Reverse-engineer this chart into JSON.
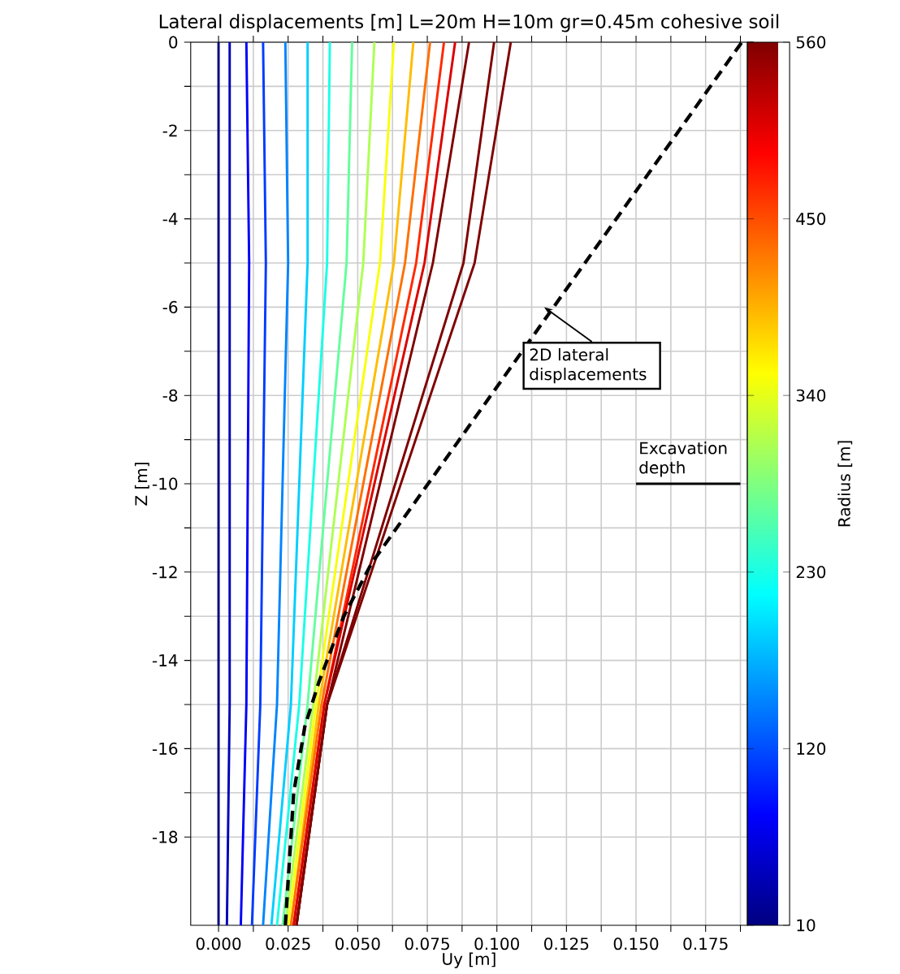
{
  "chart_data": {
    "type": "line",
    "title": "Lateral displacements [m] L=20m H=10m gr=0.45m cohesive soil",
    "xlabel": "Uy [m]",
    "ylabel": "Z [m]",
    "clabel": "Radius [m]",
    "xlim": [
      -0.01,
      0.19
    ],
    "ylim": [
      -20,
      0
    ],
    "xticks": [
      {
        "value": 0,
        "label": "0.000"
      },
      {
        "value": 0.0125,
        "label": null
      },
      {
        "value": 0.025,
        "label": "0.025"
      },
      {
        "value": 0.0375,
        "label": null
      },
      {
        "value": 0.05,
        "label": "0.050"
      },
      {
        "value": 0.0625,
        "label": null
      },
      {
        "value": 0.075,
        "label": "0.075"
      },
      {
        "value": 0.0875,
        "label": null
      },
      {
        "value": 0.1,
        "label": "0.100"
      },
      {
        "value": 0.1125,
        "label": null
      },
      {
        "value": 0.125,
        "label": "0.125"
      },
      {
        "value": 0.1375,
        "label": null
      },
      {
        "value": 0.15,
        "label": "0.150"
      },
      {
        "value": 0.1625,
        "label": null
      },
      {
        "value": 0.175,
        "label": "0.175"
      },
      {
        "value": 0.1875,
        "label": null
      }
    ],
    "yticks": [
      -18,
      {
        "value": -17,
        "label": null
      },
      -16,
      {
        "value": -15,
        "label": null
      },
      -14,
      {
        "value": -13,
        "label": null
      },
      -12,
      {
        "value": -11,
        "label": null
      },
      -10,
      {
        "value": -9,
        "label": null
      },
      -8,
      {
        "value": -7,
        "label": null
      },
      -6,
      {
        "value": -5,
        "label": null
      },
      -4,
      {
        "value": -3,
        "label": null
      },
      -2,
      {
        "value": -1,
        "label": null
      },
      0
    ],
    "grid": true,
    "clim": [
      10,
      560
    ],
    "cticks": [
      10,
      120,
      230,
      340,
      450,
      560
    ],
    "series": [
      {
        "color": "#00007f",
        "x": [
          0.0,
          0.0,
          0.0,
          0.0
        ],
        "values": [
          0,
          -5,
          -15,
          -20
        ]
      },
      {
        "color": "#0000b8",
        "x": [
          0.004,
          0.004,
          0.004,
          0.003
        ],
        "values": [
          0,
          -5,
          -15,
          -20
        ]
      },
      {
        "color": "#0000f7",
        "x": [
          0.01,
          0.011,
          0.01,
          0.008
        ],
        "values": [
          0,
          -5,
          -15,
          -20
        ]
      },
      {
        "color": "#003bff",
        "x": [
          0.016,
          0.017,
          0.015,
          0.012
        ],
        "values": [
          0,
          -5,
          -15,
          -20
        ]
      },
      {
        "color": "#0084ff",
        "x": [
          0.024,
          0.025,
          0.021,
          0.016
        ],
        "values": [
          0,
          -5,
          -15,
          -20
        ]
      },
      {
        "color": "#00ceff",
        "x": [
          0.032,
          0.032,
          0.026,
          0.019
        ],
        "values": [
          0,
          -5,
          -15,
          -20
        ]
      },
      {
        "color": "#1affe6",
        "x": [
          0.04,
          0.039,
          0.029,
          0.021
        ],
        "values": [
          0,
          -5,
          -15,
          -20
        ]
      },
      {
        "color": "#63ff9c",
        "x": [
          0.048,
          0.046,
          0.032,
          0.023
        ],
        "values": [
          0,
          -5,
          -15,
          -20
        ]
      },
      {
        "color": "#adff52",
        "x": [
          0.056,
          0.052,
          0.034,
          0.024
        ],
        "values": [
          0,
          -5,
          -15,
          -20
        ]
      },
      {
        "color": "#f7ff08",
        "x": [
          0.063,
          0.058,
          0.035,
          0.025
        ],
        "values": [
          0,
          -5,
          -15,
          -20
        ]
      },
      {
        "color": "#ffbc00",
        "x": [
          0.07,
          0.063,
          0.036,
          0.026
        ],
        "values": [
          0,
          -5,
          -15,
          -20
        ]
      },
      {
        "color": "#ff7000",
        "x": [
          0.076,
          0.067,
          0.037,
          0.026
        ],
        "values": [
          0,
          -5,
          -15,
          -20
        ]
      },
      {
        "color": "#ff2900",
        "x": [
          0.081,
          0.071,
          0.038,
          0.027
        ],
        "values": [
          0,
          -5,
          -15,
          -20
        ]
      },
      {
        "color": "#db0000",
        "x": [
          0.085,
          0.074,
          0.038,
          0.027
        ],
        "values": [
          0,
          -5,
          -15,
          -20
        ]
      },
      {
        "color": "#7f0000",
        "x": [
          0.09,
          0.077,
          0.039,
          0.028
        ],
        "values": [
          0,
          -5,
          -15,
          -20
        ]
      },
      {
        "color": "#7f0000",
        "x": [
          0.099,
          0.088,
          0.039,
          0.028
        ],
        "values": [
          0,
          -5,
          -15,
          -20
        ]
      },
      {
        "color": "#7f0000",
        "x": [
          0.105,
          0.092,
          0.039,
          0.028
        ],
        "values": [
          0,
          -5,
          -15,
          -20
        ]
      },
      {
        "color": "#000000",
        "line_style": "dashed",
        "x": [
          0.024,
          0.027,
          0.031,
          0.036,
          0.045,
          0.055,
          0.188
        ],
        "values": [
          -20,
          -17,
          -15.5,
          -14.5,
          -13,
          -11.8,
          0
        ]
      },
      {
        "color": "#000000",
        "x": [
          0.15,
          0.1875
        ],
        "values": [
          -10,
          -10
        ]
      }
    ],
    "annotations": [
      {
        "text": "2D lateral displacements",
        "x": 0.117,
        "y": -6
      },
      {
        "text": "Excavation depth",
        "x": 0.15,
        "y": -10
      }
    ]
  }
}
